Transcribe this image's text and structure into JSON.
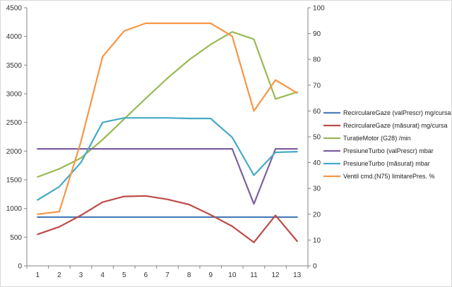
{
  "chart_data": {
    "type": "line",
    "title": "",
    "categories": [
      "1",
      "2",
      "3",
      "4",
      "5",
      "6",
      "7",
      "8",
      "9",
      "10",
      "11",
      "12",
      "13"
    ],
    "y_left": {
      "min": 0,
      "max": 4500,
      "step": 500,
      "ticks": [
        "0",
        "500",
        "1000",
        "1500",
        "2000",
        "2500",
        "3000",
        "3500",
        "4000",
        "4500"
      ]
    },
    "y_right": {
      "min": 0,
      "max": 100,
      "step": 10,
      "ticks": [
        "0",
        "10",
        "20",
        "30",
        "40",
        "50",
        "60",
        "70",
        "80",
        "90",
        "100"
      ]
    },
    "grid": false,
    "legend_position": "right",
    "series": [
      {
        "name": "RecirculareGaze (valPrescr)  mg/cursa",
        "axis": "left",
        "color": "#4a7ebb",
        "values": [
          850,
          850,
          850,
          850,
          850,
          850,
          850,
          850,
          850,
          850,
          850,
          850,
          850
        ]
      },
      {
        "name": "RecirculareGaze (măsurat)  mg/cursa",
        "axis": "left",
        "color": "#be4b48",
        "values": [
          550,
          680,
          880,
          1110,
          1210,
          1220,
          1160,
          1070,
          890,
          690,
          410,
          880,
          430
        ]
      },
      {
        "name": "TurațieMotor (G28)  /min",
        "axis": "left",
        "color": "#98b954",
        "values": [
          1550,
          1690,
          1880,
          2200,
          2560,
          2920,
          3270,
          3590,
          3860,
          4080,
          3950,
          2910,
          3030
        ]
      },
      {
        "name": "PresiuneTurbo (valPrescr)  mbar",
        "axis": "left",
        "color": "#7d60a0",
        "values": [
          2040,
          2040,
          2040,
          2040,
          2040,
          2040,
          2040,
          2040,
          2040,
          2040,
          1080,
          2040,
          2040
        ]
      },
      {
        "name": "PresiuneTurbo (măsurat)  mbar",
        "axis": "left",
        "color": "#46aac5",
        "values": [
          1150,
          1380,
          1800,
          2500,
          2580,
          2580,
          2580,
          2570,
          2570,
          2240,
          1580,
          1980,
          1990
        ]
      },
      {
        "name": "Ventil cmd.(N75) limitarePres.  %",
        "axis": "right",
        "color": "#f79646",
        "values": [
          20,
          21,
          48,
          81,
          91,
          94,
          94,
          94,
          94,
          89,
          60,
          72,
          67
        ]
      }
    ]
  }
}
